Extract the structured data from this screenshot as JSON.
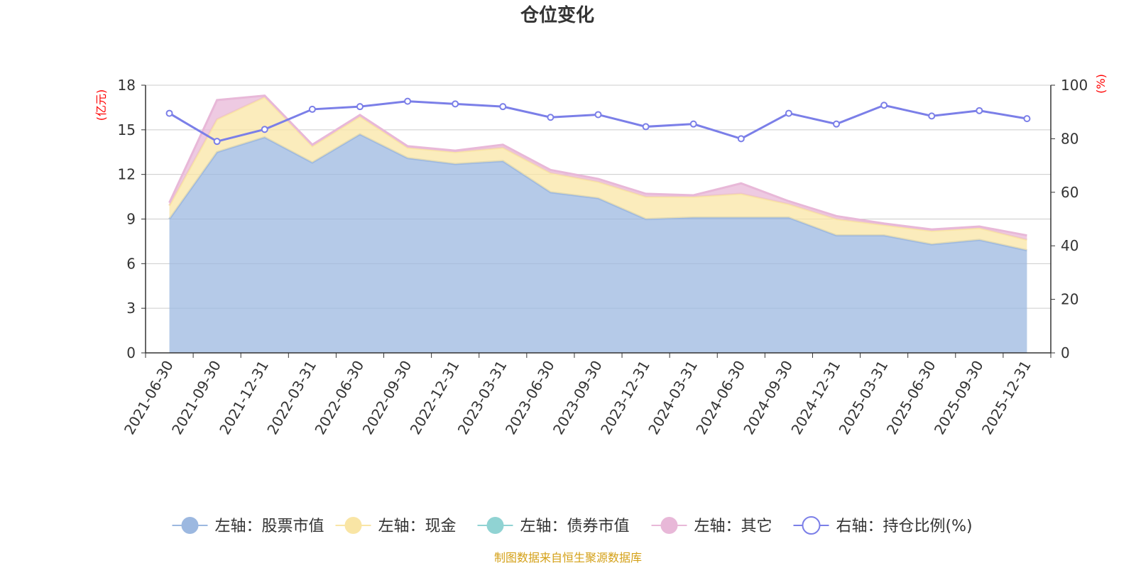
{
  "chart_data": {
    "type": "area",
    "title": "仓位变化",
    "left_axis_label": "(亿元)",
    "right_axis_label": "(%)",
    "left_ylim": [
      0,
      18
    ],
    "left_ticks": [
      0,
      3,
      6,
      9,
      12,
      15,
      18
    ],
    "right_ylim": [
      0,
      100
    ],
    "right_ticks": [
      0,
      20,
      40,
      60,
      80,
      100
    ],
    "categories": [
      "2021-06-30",
      "2021-09-30",
      "2021-12-31",
      "2022-03-31",
      "2022-06-30",
      "2022-09-30",
      "2022-12-31",
      "2023-03-31",
      "2023-06-30",
      "2023-09-30",
      "2023-12-31",
      "2024-03-31",
      "2024-06-30",
      "2024-09-30",
      "2024-12-31",
      "2025-03-31",
      "2025-06-30",
      "2025-09-30",
      "2025-12-31"
    ],
    "series": [
      {
        "name": "左轴：股票市值",
        "axis": "left",
        "kind": "stacked-area",
        "color": "#9cb8e0",
        "values": [
          9.0,
          13.5,
          14.5,
          12.8,
          14.7,
          13.1,
          12.7,
          12.9,
          10.8,
          10.4,
          9.0,
          9.1,
          9.1,
          9.1,
          7.9,
          7.9,
          7.3,
          7.6,
          6.9
        ]
      },
      {
        "name": "左轴：现金",
        "axis": "left",
        "kind": "stacked-area",
        "color": "#f9e5a5",
        "values": [
          0.9,
          2.2,
          2.7,
          1.1,
          1.2,
          0.7,
          0.8,
          0.9,
          1.3,
          1.1,
          1.5,
          1.4,
          1.6,
          0.9,
          1.1,
          0.7,
          0.9,
          0.8,
          0.7
        ]
      },
      {
        "name": "左轴：债券市值",
        "axis": "left",
        "kind": "stacked-area",
        "color": "#90d3d3",
        "values": [
          0,
          0,
          0,
          0,
          0,
          0,
          0,
          0,
          0,
          0,
          0,
          0,
          0,
          0,
          0,
          0,
          0,
          0,
          0
        ]
      },
      {
        "name": "左轴：其它",
        "axis": "left",
        "kind": "stacked-area",
        "color": "#e8b8d8",
        "values": [
          0.2,
          1.3,
          0.1,
          0.1,
          0.1,
          0.1,
          0.1,
          0.2,
          0.2,
          0.2,
          0.2,
          0.1,
          0.7,
          0.2,
          0.2,
          0.1,
          0.1,
          0.1,
          0.3
        ]
      },
      {
        "name": "右轴：持仓比例(%)",
        "axis": "right",
        "kind": "line",
        "color": "#7b7fe8",
        "values": [
          89.5,
          79.0,
          83.5,
          91.0,
          92.0,
          94.0,
          93.0,
          92.0,
          88.0,
          89.0,
          84.5,
          85.5,
          80.0,
          89.5,
          85.5,
          92.5,
          88.5,
          90.5,
          87.5
        ]
      }
    ],
    "legend_position": "bottom",
    "grid": true,
    "source_note": "制图数据来自恒生聚源数据库",
    "colors": {
      "title": "#333333",
      "axis_unit": "#ff0000",
      "grid": "#cccccc",
      "source": "#d4a017"
    }
  }
}
